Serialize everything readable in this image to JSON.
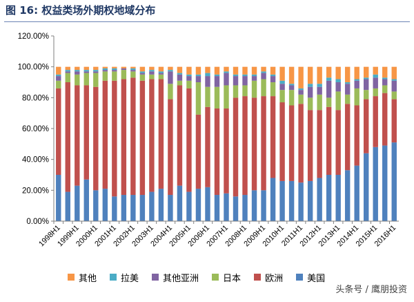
{
  "figure": {
    "title": "图 16:  权益类场外期权地域分布"
  },
  "watermark": "头条号 / 鹰朋投资",
  "chart_data": {
    "type": "bar",
    "stacked": true,
    "categories": [
      "1998H1",
      "1998H2",
      "1999H1",
      "1999H2",
      "2000H1",
      "2000H2",
      "2001H1",
      "2001H2",
      "2002H1",
      "2002H2",
      "2003H1",
      "2003H2",
      "2004H1",
      "2004H2",
      "2005H1",
      "2005H2",
      "2006H1",
      "2006H2",
      "2007H1",
      "2007H2",
      "2008H1",
      "2008H2",
      "2009H1",
      "2009H2",
      "2010H1",
      "2010H2",
      "2011H1",
      "2011H2",
      "2012H1",
      "2012H2",
      "2013H1",
      "2013H2",
      "2014H1",
      "2014H2",
      "2015H1",
      "2015H2",
      "2016H1"
    ],
    "x_tick_labels": [
      "1998H1",
      "1999H1",
      "2000H1",
      "2001H1",
      "2002H1",
      "2003H1",
      "2004H1",
      "2005H1",
      "2006H1",
      "2007H1",
      "2008H1",
      "2009H1",
      "2010H1",
      "2011H1",
      "2012H1",
      "2013H1",
      "2014H1",
      "2015H1",
      "2016H1"
    ],
    "y_tick_labels": [
      "0.00%",
      "20.00%",
      "40.00%",
      "60.00%",
      "80.00%",
      "100.00%",
      "120.00%"
    ],
    "ylim": [
      0,
      120
    ],
    "y_step": 20,
    "grid": false,
    "legend_position": "bottom",
    "legend_order": [
      "其他",
      "拉美",
      "其他亚洲",
      "日本",
      "欧洲",
      "美国"
    ],
    "series": [
      {
        "name": "美国",
        "color": "#4f81bd",
        "values": [
          30,
          19,
          23,
          27,
          20,
          21,
          16,
          17,
          17,
          17,
          19,
          21,
          17,
          23,
          19,
          21,
          22,
          17,
          18,
          16,
          17,
          20,
          20,
          28,
          26,
          26,
          25,
          26,
          28,
          30,
          30,
          33,
          36,
          44,
          48,
          49,
          51
        ]
      },
      {
        "name": "欧洲",
        "color": "#c0504d",
        "values": [
          56,
          71,
          65,
          61,
          67,
          70,
          75,
          75,
          76,
          74,
          73,
          71,
          62,
          65,
          67,
          48,
          52,
          56,
          55,
          64,
          64,
          60,
          61,
          53,
          51,
          49,
          51,
          46,
          44,
          44,
          42,
          43,
          39,
          35,
          33,
          34,
          28
        ]
      },
      {
        "name": "日本",
        "color": "#9bbb59",
        "values": [
          5,
          6,
          7,
          8,
          9,
          6,
          6,
          6,
          4,
          4,
          3,
          3,
          10,
          3,
          5,
          21,
          13,
          14,
          15,
          8,
          7,
          11,
          11,
          9,
          8,
          10,
          6,
          8,
          10,
          6,
          12,
          6,
          11,
          6,
          5,
          5,
          5
        ]
      },
      {
        "name": "其他亚洲",
        "color": "#8064a2",
        "values": [
          3,
          1,
          2,
          1,
          1,
          1,
          1,
          1,
          1,
          1,
          2,
          1,
          8,
          4,
          3,
          4,
          7,
          7,
          8,
          6,
          6,
          3,
          4,
          4,
          4,
          3,
          3,
          7,
          5,
          11,
          6,
          7,
          5,
          7,
          7,
          4,
          7
        ]
      },
      {
        "name": "拉美",
        "color": "#4bacc6",
        "values": [
          1,
          1,
          1,
          1,
          1,
          1,
          1,
          0,
          1,
          1,
          1,
          1,
          1,
          1,
          1,
          1,
          2,
          1,
          1,
          1,
          1,
          1,
          1,
          1,
          2,
          1,
          1,
          2,
          2,
          2,
          2,
          1,
          1,
          1,
          2,
          1,
          1
        ]
      },
      {
        "name": "其他",
        "color": "#f79646",
        "values": [
          5,
          2,
          2,
          2,
          2,
          1,
          1,
          1,
          1,
          3,
          2,
          3,
          2,
          4,
          5,
          5,
          4,
          5,
          3,
          5,
          5,
          5,
          3,
          5,
          9,
          11,
          14,
          11,
          11,
          7,
          8,
          10,
          8,
          7,
          5,
          7,
          8
        ]
      }
    ]
  }
}
